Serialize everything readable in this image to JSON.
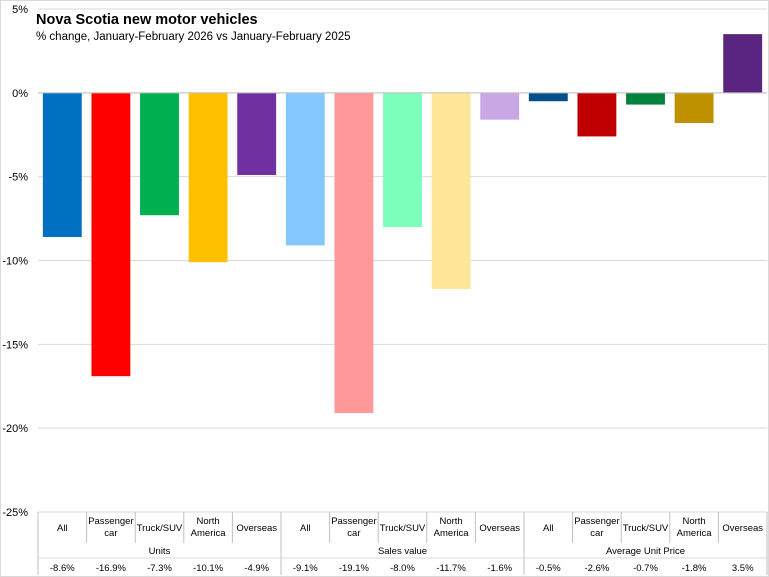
{
  "chart_data": {
    "type": "bar",
    "title": "Nova Scotia new motor vehicles",
    "subtitle": "% change, January-February  2026 vs January-February  2025",
    "xlabel": "",
    "ylabel": "",
    "ylim": [
      -25,
      5
    ],
    "yticks": [
      5,
      0,
      -5,
      -10,
      -15,
      -20,
      -25
    ],
    "ytick_labels": [
      "5%",
      "0%",
      "-5%",
      "-10%",
      "-15%",
      "-20%",
      "-25%"
    ],
    "grid": true,
    "groups": [
      {
        "name": "Units",
        "categories": [
          "All",
          "Passenger car",
          "Truck/SUV",
          "North America",
          "Overseas"
        ],
        "values": [
          -8.6,
          -16.9,
          -7.3,
          -10.1,
          -4.9
        ],
        "value_labels": [
          "-8.6%",
          "-16.9%",
          "-7.3%",
          "-10.1%",
          "-4.9%"
        ],
        "colors": [
          "#0070C0",
          "#FF0000",
          "#00B050",
          "#FFC000",
          "#7030A0"
        ]
      },
      {
        "name": "Sales value",
        "categories": [
          "All",
          "Passenger car",
          "Truck/SUV",
          "North America",
          "Overseas"
        ],
        "values": [
          -9.1,
          -19.1,
          -8.0,
          -11.7,
          -1.6
        ],
        "value_labels": [
          "-9.1%",
          "-19.1%",
          "-8.0%",
          "-11.7%",
          "-1.6%"
        ],
        "colors": [
          "#85C8FF",
          "#FF9999",
          "#7CFFBB",
          "#FFE699",
          "#C9A7E4"
        ]
      },
      {
        "name": "Average Unit Price",
        "categories": [
          "All",
          "Passenger car",
          "Truck/SUV",
          "North America",
          "Overseas"
        ],
        "values": [
          -0.5,
          -2.6,
          -0.7,
          -1.8,
          3.5
        ],
        "value_labels": [
          "-0.5%",
          "-2.6%",
          "-0.7%",
          "-1.8%",
          "3.5%"
        ],
        "colors": [
          "#00508C",
          "#C00000",
          "#00843D",
          "#BF9000",
          "#5A2580"
        ]
      }
    ]
  },
  "style": {
    "grid_color": "#d9d9d9",
    "axis_color": "#bfbfbf",
    "text_color": "#000000"
  }
}
